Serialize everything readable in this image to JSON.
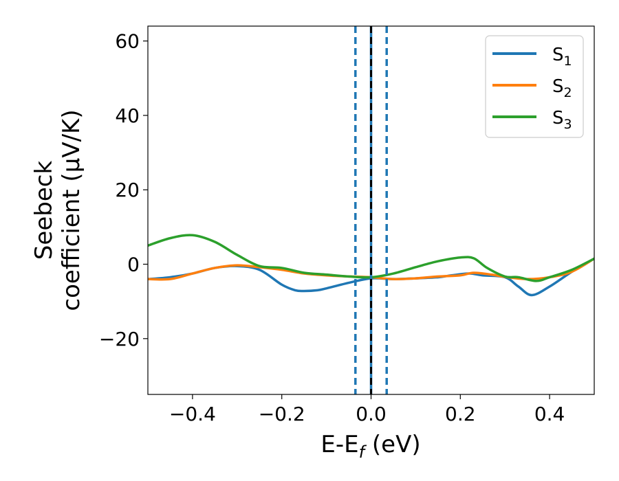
{
  "chart_data": {
    "type": "line",
    "xlabel": "E-E_f (eV)",
    "ylabel_line1": "Seebeck",
    "ylabel_line2": "coefficient  (μV/K)",
    "xlim": [
      -0.5,
      0.5
    ],
    "ylim": [
      -35,
      64
    ],
    "xticks": [
      -0.4,
      -0.2,
      0.0,
      0.2,
      0.4
    ],
    "xtick_labels": [
      "−0.4",
      "−0.2",
      "0.0",
      "0.2",
      "0.4"
    ],
    "yticks": [
      -20,
      0,
      20,
      40,
      60
    ],
    "ytick_labels": [
      "−20",
      "0",
      "20",
      "40",
      "60"
    ],
    "grid": false,
    "legend_position": "top-right",
    "vertical_lines": [
      {
        "x": -0.035,
        "style": "dashed",
        "color": "#1f77b4"
      },
      {
        "x": 0.0,
        "style": "solid",
        "color": "#1f77b4"
      },
      {
        "x": 0.0,
        "style": "dashed",
        "color": "#000000"
      },
      {
        "x": 0.035,
        "style": "dashed",
        "color": "#1f77b4"
      }
    ],
    "series": [
      {
        "name": "S",
        "subscript": "1",
        "color": "#1f77b4",
        "x": [
          -0.5,
          -0.45,
          -0.4,
          -0.35,
          -0.3,
          -0.25,
          -0.2,
          -0.17,
          -0.15,
          -0.12,
          -0.1,
          -0.05,
          0.0,
          0.05,
          0.1,
          0.15,
          0.18,
          0.22,
          0.25,
          0.3,
          0.33,
          0.36,
          0.4,
          0.45,
          0.5
        ],
        "values": [
          -4,
          -3.5,
          -2.5,
          -1.0,
          -0.5,
          -1.5,
          -5.5,
          -7.0,
          -7.2,
          -7.0,
          -6.5,
          -5.0,
          -3.8,
          -4.0,
          -3.8,
          -3.5,
          -3.0,
          -2.5,
          -3.0,
          -3.5,
          -6.0,
          -8.3,
          -6.0,
          -2.0,
          1.5
        ]
      },
      {
        "name": "S",
        "subscript": "2",
        "color": "#ff7f0e",
        "x": [
          -0.5,
          -0.45,
          -0.4,
          -0.35,
          -0.3,
          -0.25,
          -0.2,
          -0.15,
          -0.1,
          -0.05,
          0.0,
          0.05,
          0.1,
          0.15,
          0.2,
          0.23,
          0.27,
          0.3,
          0.35,
          0.4,
          0.45,
          0.5
        ],
        "values": [
          -4,
          -4.0,
          -2.5,
          -1.0,
          -0.3,
          -0.8,
          -1.5,
          -2.5,
          -3.0,
          -3.3,
          -3.5,
          -4.0,
          -3.8,
          -3.3,
          -3.0,
          -2.3,
          -2.8,
          -3.4,
          -4.0,
          -3.5,
          -2.0,
          1.5
        ]
      },
      {
        "name": "S",
        "subscript": "3",
        "color": "#2ca02c",
        "x": [
          -0.5,
          -0.45,
          -0.4,
          -0.35,
          -0.3,
          -0.25,
          -0.2,
          -0.15,
          -0.1,
          -0.05,
          0.0,
          0.05,
          0.1,
          0.15,
          0.2,
          0.23,
          0.26,
          0.3,
          0.33,
          0.37,
          0.4,
          0.45,
          0.5
        ],
        "values": [
          5,
          7.0,
          7.8,
          6.0,
          2.5,
          -0.5,
          -1.0,
          -2.3,
          -2.8,
          -3.3,
          -3.5,
          -2.5,
          -0.8,
          0.8,
          1.8,
          1.6,
          -1.0,
          -3.3,
          -3.5,
          -4.5,
          -3.5,
          -1.5,
          1.5
        ]
      }
    ]
  }
}
